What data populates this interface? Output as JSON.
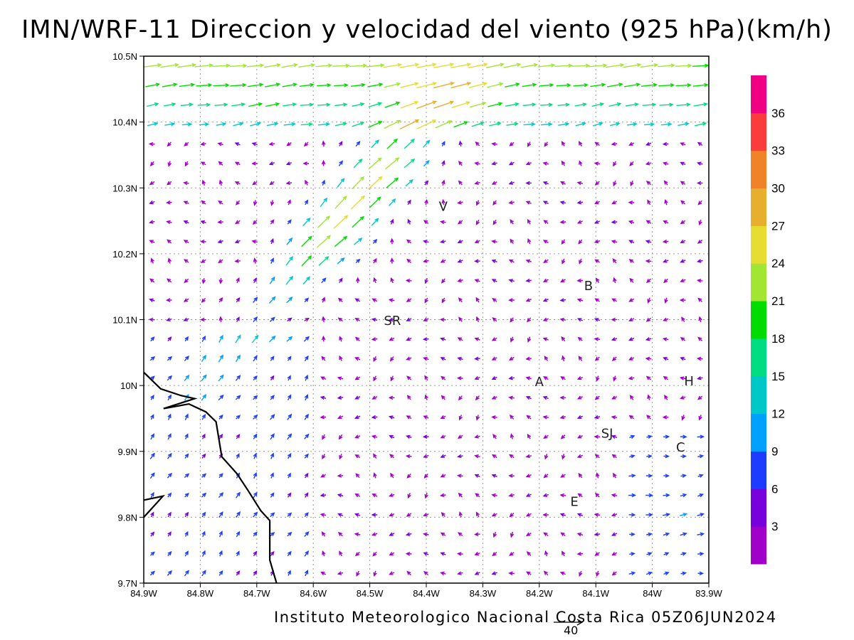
{
  "title": "IMN/WRF-11 Direccion y velocidad del viento (925 hPa)(km/h)",
  "footer": "Instituto Meteorologico Nacional Costa Rica 05Z06JUN2024",
  "reference_vector": {
    "label": "40"
  },
  "map": {
    "lon_range": [
      -84.9,
      -83.9
    ],
    "lat_range": [
      9.7,
      10.5
    ],
    "x_ticks": [
      {
        "lon": -84.9,
        "label": "84.9W"
      },
      {
        "lon": -84.8,
        "label": "84.8W"
      },
      {
        "lon": -84.7,
        "label": "84.7W"
      },
      {
        "lon": -84.6,
        "label": "84.6W"
      },
      {
        "lon": -84.5,
        "label": "84.5W"
      },
      {
        "lon": -84.4,
        "label": "84.4W"
      },
      {
        "lon": -84.3,
        "label": "84.3W"
      },
      {
        "lon": -84.2,
        "label": "84.2W"
      },
      {
        "lon": -84.1,
        "label": "84.1W"
      },
      {
        "lon": -84.0,
        "label": "84W"
      },
      {
        "lon": -83.9,
        "label": "83.9W"
      }
    ],
    "y_ticks": [
      {
        "lat": 9.7,
        "label": "9.7N"
      },
      {
        "lat": 9.8,
        "label": "9.8N"
      },
      {
        "lat": 9.9,
        "label": "9.9N"
      },
      {
        "lat": 10.0,
        "label": "10N"
      },
      {
        "lat": 10.1,
        "label": "10.1N"
      },
      {
        "lat": 10.2,
        "label": "10.2N"
      },
      {
        "lat": 10.3,
        "label": "10.3N"
      },
      {
        "lat": 10.4,
        "label": "10.4N"
      },
      {
        "lat": 10.5,
        "label": "10.5N"
      }
    ],
    "city_labels": [
      {
        "text": "V",
        "lon": -84.37,
        "lat": 10.265
      },
      {
        "text": "B",
        "lon": -84.113,
        "lat": 10.145
      },
      {
        "text": "SR",
        "lon": -84.46,
        "lat": 10.092
      },
      {
        "text": "A",
        "lon": -84.2,
        "lat": 9.999
      },
      {
        "text": "SJ",
        "lon": -84.08,
        "lat": 9.921
      },
      {
        "text": "C",
        "lon": -83.95,
        "lat": 9.9
      },
      {
        "text": "H",
        "lon": -83.935,
        "lat": 10.0
      },
      {
        "text": "E",
        "lon": -84.138,
        "lat": 9.817
      }
    ],
    "coastline": [
      [
        -84.9,
        10.02
      ],
      [
        -84.87,
        9.995
      ],
      [
        -84.835,
        9.985
      ],
      [
        -84.81,
        9.98
      ],
      [
        -84.865,
        9.965
      ],
      [
        -84.82,
        9.972
      ],
      [
        -84.79,
        9.96
      ],
      [
        -84.772,
        9.945
      ],
      [
        -84.762,
        9.892
      ],
      [
        -84.735,
        9.866
      ],
      [
        -84.715,
        9.84
      ],
      [
        -84.693,
        9.81
      ],
      [
        -84.677,
        9.795
      ],
      [
        -84.677,
        9.735
      ],
      [
        -84.665,
        9.7
      ]
    ],
    "coastline_small": [
      [
        -84.9,
        9.8
      ],
      [
        -84.866,
        9.832
      ],
      [
        -84.9,
        9.826
      ]
    ]
  },
  "colorbar": {
    "levels": [
      "3",
      "6",
      "9",
      "12",
      "15",
      "18",
      "21",
      "24",
      "27",
      "30",
      "33",
      "36"
    ],
    "colors": [
      "#a000c8",
      "#7800dc",
      "#1e3cff",
      "#00a0ff",
      "#00c8c8",
      "#00dc82",
      "#00dc00",
      "#a0e632",
      "#e6dc32",
      "#e6af2d",
      "#f08228",
      "#fa3c3c",
      "#f00082"
    ]
  },
  "wind_field": {
    "units": "km/h",
    "grid": {
      "nx": 33,
      "ny": 27
    }
  }
}
